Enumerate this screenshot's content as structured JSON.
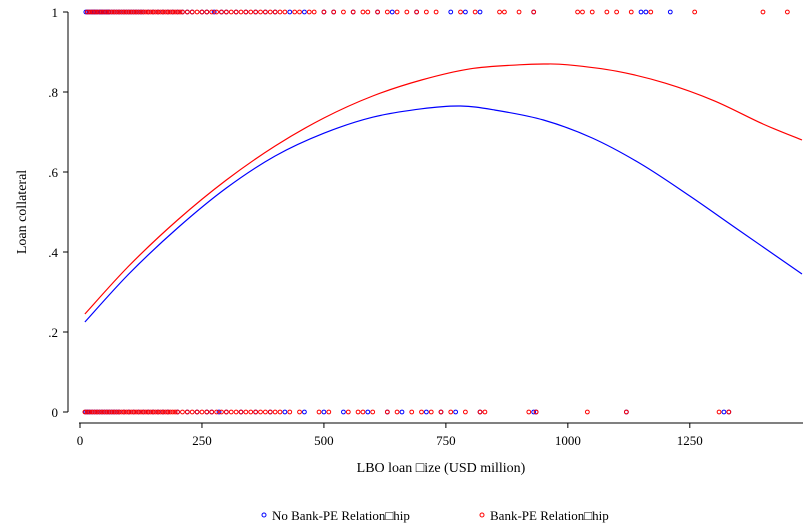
{
  "chart_data": {
    "type": "scatter",
    "title": "",
    "xlabel": "LBO loan □ize (USD million)",
    "ylabel": "Loan collateral",
    "xlim": [
      0,
      1480
    ],
    "ylim": [
      0,
      1
    ],
    "x_ticks": [
      0,
      250,
      500,
      750,
      1000,
      1250
    ],
    "x_tick_labels": [
      "0",
      "250",
      "500",
      "750",
      "1000",
      "1250"
    ],
    "y_ticks": [
      0,
      0.2,
      0.4,
      0.6,
      0.8,
      1
    ],
    "y_tick_labels": [
      "0",
      ".2",
      ".4",
      ".6",
      ".8",
      "1"
    ],
    "grid": false,
    "legend_position": "bottom",
    "series": [
      {
        "name": "No Bank-PE Relation□hip",
        "color": "#0000ff",
        "marker": "hollow-circle",
        "points_y1": [
          12,
          15,
          18,
          22,
          25,
          28,
          30,
          33,
          36,
          40,
          42,
          45,
          48,
          52,
          55,
          58,
          60,
          65,
          70,
          75,
          80,
          85,
          90,
          95,
          100,
          105,
          110,
          115,
          120,
          125,
          130,
          140,
          150,
          160,
          170,
          180,
          190,
          200,
          210,
          220,
          230,
          250,
          260,
          275,
          290,
          300,
          320,
          340,
          360,
          380,
          400,
          430,
          460,
          500,
          520,
          560,
          610,
          640,
          690,
          760,
          790,
          820,
          930,
          1150,
          1160,
          1210
        ],
        "points_y0": [
          12,
          16,
          20,
          25,
          30,
          35,
          40,
          45,
          50,
          55,
          60,
          65,
          70,
          75,
          80,
          90,
          100,
          110,
          120,
          130,
          140,
          150,
          160,
          170,
          180,
          200,
          220,
          240,
          260,
          270,
          285,
          300,
          330,
          360,
          390,
          420,
          460,
          500,
          540,
          590,
          630,
          660,
          710,
          740,
          770,
          820,
          930,
          935,
          1120,
          1320,
          1330
        ]
      },
      {
        "name": "Bank-PE Relation□hip",
        "color": "#ff0000",
        "marker": "hollow-circle",
        "points_y1": [
          15,
          20,
          25,
          30,
          35,
          40,
          45,
          50,
          55,
          60,
          65,
          70,
          75,
          80,
          85,
          90,
          95,
          100,
          105,
          110,
          115,
          120,
          125,
          130,
          135,
          140,
          145,
          150,
          155,
          160,
          165,
          170,
          175,
          180,
          185,
          190,
          195,
          200,
          205,
          210,
          220,
          230,
          240,
          250,
          260,
          270,
          280,
          290,
          300,
          310,
          320,
          330,
          340,
          350,
          360,
          370,
          380,
          390,
          400,
          410,
          420,
          440,
          450,
          470,
          480,
          500,
          520,
          540,
          560,
          580,
          590,
          610,
          630,
          650,
          670,
          690,
          710,
          730,
          780,
          810,
          860,
          870,
          900,
          930,
          1020,
          1030,
          1050,
          1080,
          1100,
          1130,
          1170,
          1260,
          1400,
          1450
        ],
        "points_y0": [
          10,
          15,
          20,
          25,
          30,
          35,
          40,
          45,
          50,
          55,
          60,
          65,
          70,
          75,
          80,
          85,
          90,
          95,
          100,
          105,
          110,
          115,
          120,
          125,
          130,
          135,
          140,
          145,
          150,
          155,
          160,
          165,
          170,
          175,
          180,
          185,
          190,
          195,
          200,
          210,
          220,
          230,
          240,
          250,
          260,
          270,
          280,
          290,
          300,
          310,
          320,
          330,
          340,
          350,
          360,
          370,
          380,
          390,
          400,
          410,
          430,
          450,
          490,
          510,
          550,
          570,
          580,
          600,
          630,
          650,
          680,
          700,
          720,
          740,
          760,
          790,
          820,
          830,
          920,
          935,
          1040,
          1120,
          1310,
          1330
        ]
      }
    ],
    "fitted_curves": [
      {
        "name": "No Bank-PE Relation□hip",
        "color": "#0000ff",
        "x": [
          10,
          100,
          200,
          300,
          400,
          500,
          600,
          700,
          780,
          850,
          950,
          1050,
          1150,
          1250,
          1350,
          1480
        ],
        "y": [
          0.225,
          0.345,
          0.46,
          0.56,
          0.64,
          0.697,
          0.737,
          0.758,
          0.765,
          0.755,
          0.73,
          0.685,
          0.62,
          0.54,
          0.455,
          0.345
        ]
      },
      {
        "name": "Bank-PE Relation□hip",
        "color": "#ff0000",
        "x": [
          10,
          100,
          200,
          300,
          400,
          500,
          600,
          700,
          800,
          900,
          950,
          1000,
          1100,
          1200,
          1300,
          1400,
          1480
        ],
        "y": [
          0.245,
          0.365,
          0.48,
          0.58,
          0.665,
          0.735,
          0.79,
          0.83,
          0.858,
          0.868,
          0.87,
          0.868,
          0.852,
          0.822,
          0.778,
          0.72,
          0.68
        ]
      }
    ]
  }
}
